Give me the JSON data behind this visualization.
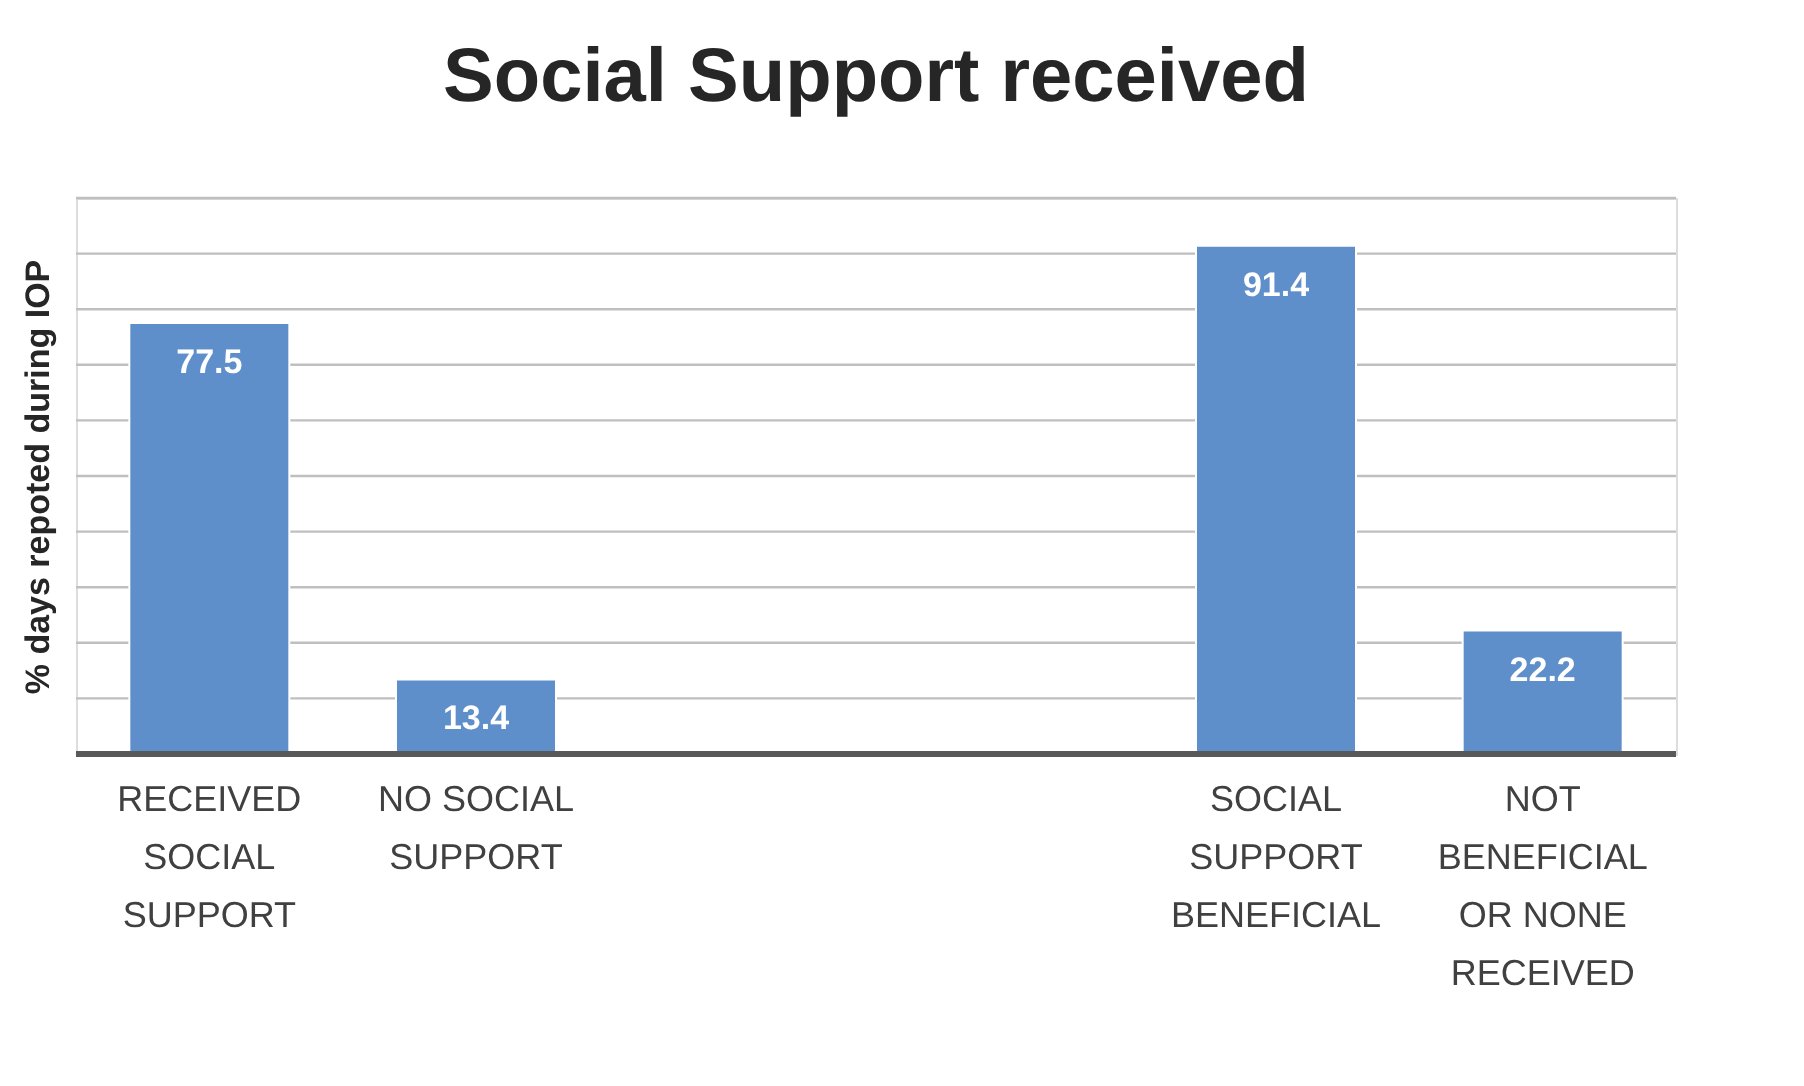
{
  "chart_data": {
    "type": "bar",
    "title": "Social Support received",
    "ylabel": "% days repoted during IOP",
    "categories": [
      "RECEIVED SOCIAL SUPPORT",
      "NO SOCIAL SUPPORT",
      null,
      null,
      "SOCIAL SUPPORT BENEFICIAL",
      "NOT BENEFICIAL OR NONE RECEIVED"
    ],
    "values": [
      77.5,
      13.4,
      null,
      null,
      91.4,
      22.2
    ],
    "color": "#5f8fcb",
    "ylim": [
      0,
      100
    ],
    "yticks": [
      0,
      10,
      20,
      30,
      40,
      50,
      60,
      70,
      80,
      90,
      100
    ],
    "tick_labels": "x",
    "grid": "y",
    "data_labels": true
  }
}
